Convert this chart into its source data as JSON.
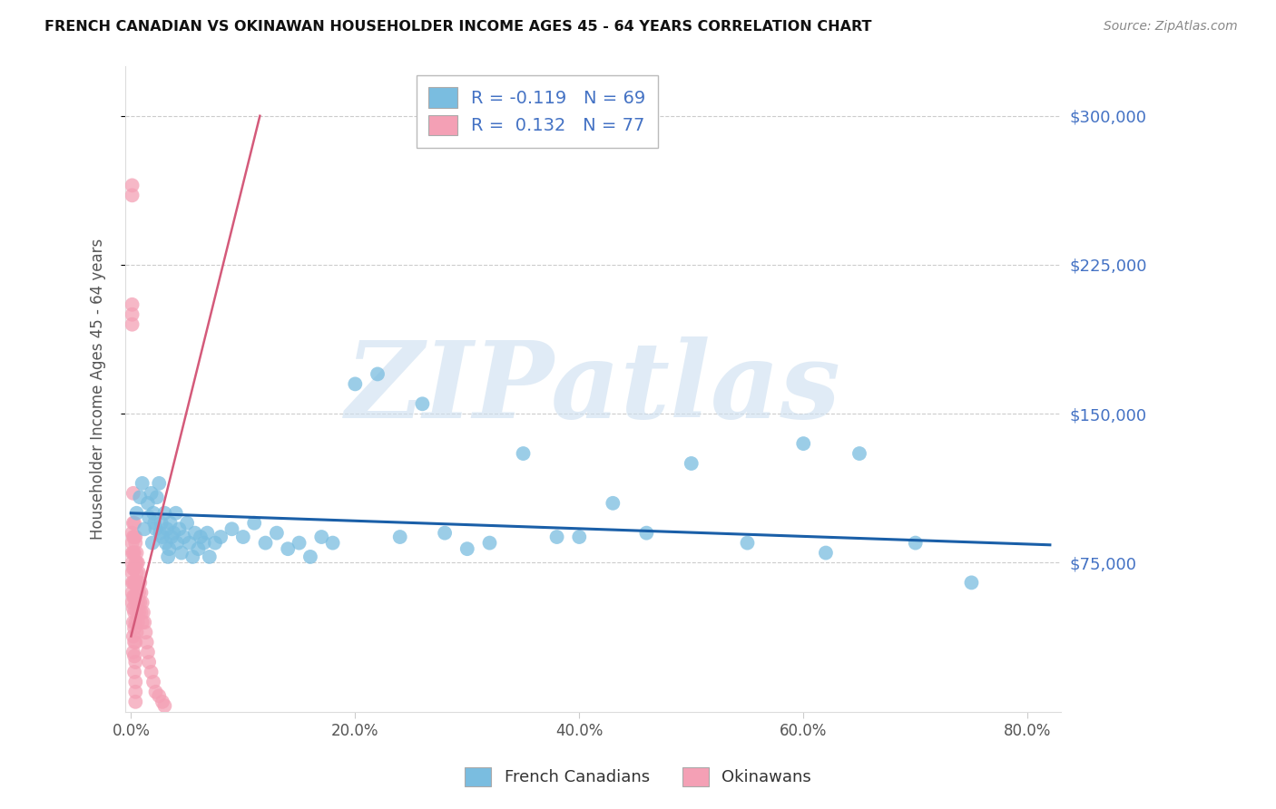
{
  "title": "FRENCH CANADIAN VS OKINAWAN HOUSEHOLDER INCOME AGES 45 - 64 YEARS CORRELATION CHART",
  "source": "Source: ZipAtlas.com",
  "ylabel": "Householder Income Ages 45 - 64 years",
  "ytick_labels": [
    "$75,000",
    "$150,000",
    "$225,000",
    "$300,000"
  ],
  "ytick_vals": [
    75000,
    150000,
    225000,
    300000
  ],
  "xtick_labels": [
    "0.0%",
    "20.0%",
    "40.0%",
    "60.0%",
    "80.0%"
  ],
  "xtick_vals": [
    0.0,
    0.2,
    0.4,
    0.6,
    0.8
  ],
  "ylim": [
    0,
    325000
  ],
  "xlim": [
    -0.005,
    0.83
  ],
  "blue_color": "#7abde0",
  "pink_color": "#f4a0b5",
  "trend_blue_color": "#1a5fa8",
  "trend_pink_color": "#d45a7a",
  "blue_label": "French Canadians",
  "pink_label": "Okinawans",
  "blue_R": -0.119,
  "blue_N": 69,
  "pink_R": 0.132,
  "pink_N": 77,
  "legend_text_color": "#4472c4",
  "watermark": "ZIPatlas",
  "watermark_color": "#ccdff0",
  "bg_color": "#ffffff",
  "grid_color": "#cccccc",
  "title_color": "#111111",
  "source_color": "#888888",
  "yticklabel_color": "#4472c4",
  "ylabel_color": "#555555",
  "blue_scatter_x": [
    0.005,
    0.008,
    0.01,
    0.012,
    0.015,
    0.016,
    0.018,
    0.019,
    0.02,
    0.021,
    0.022,
    0.023,
    0.025,
    0.026,
    0.027,
    0.028,
    0.03,
    0.031,
    0.032,
    0.033,
    0.034,
    0.035,
    0.036,
    0.038,
    0.04,
    0.041,
    0.043,
    0.045,
    0.047,
    0.05,
    0.052,
    0.055,
    0.057,
    0.06,
    0.062,
    0.065,
    0.068,
    0.07,
    0.075,
    0.08,
    0.09,
    0.1,
    0.11,
    0.12,
    0.13,
    0.14,
    0.15,
    0.16,
    0.17,
    0.18,
    0.2,
    0.22,
    0.24,
    0.26,
    0.28,
    0.3,
    0.32,
    0.35,
    0.38,
    0.4,
    0.43,
    0.46,
    0.5,
    0.55,
    0.6,
    0.62,
    0.65,
    0.7,
    0.75
  ],
  "blue_scatter_y": [
    100000,
    108000,
    115000,
    92000,
    105000,
    98000,
    110000,
    85000,
    100000,
    95000,
    92000,
    108000,
    115000,
    90000,
    95000,
    88000,
    100000,
    85000,
    92000,
    78000,
    82000,
    95000,
    88000,
    90000,
    100000,
    85000,
    92000,
    80000,
    88000,
    95000,
    85000,
    78000,
    90000,
    82000,
    88000,
    85000,
    90000,
    78000,
    85000,
    88000,
    92000,
    88000,
    95000,
    85000,
    90000,
    82000,
    85000,
    78000,
    88000,
    85000,
    165000,
    170000,
    88000,
    155000,
    90000,
    82000,
    85000,
    130000,
    88000,
    88000,
    105000,
    90000,
    125000,
    85000,
    135000,
    80000,
    130000,
    85000,
    65000
  ],
  "pink_scatter_x": [
    0.001,
    0.001,
    0.001,
    0.001,
    0.001,
    0.001,
    0.001,
    0.001,
    0.001,
    0.001,
    0.002,
    0.002,
    0.002,
    0.002,
    0.002,
    0.002,
    0.002,
    0.002,
    0.002,
    0.002,
    0.003,
    0.003,
    0.003,
    0.003,
    0.003,
    0.003,
    0.003,
    0.003,
    0.003,
    0.003,
    0.004,
    0.004,
    0.004,
    0.004,
    0.004,
    0.004,
    0.004,
    0.004,
    0.004,
    0.004,
    0.005,
    0.005,
    0.005,
    0.005,
    0.005,
    0.006,
    0.006,
    0.006,
    0.006,
    0.007,
    0.007,
    0.007,
    0.008,
    0.008,
    0.009,
    0.009,
    0.01,
    0.01,
    0.011,
    0.012,
    0.013,
    0.014,
    0.015,
    0.016,
    0.018,
    0.02,
    0.022,
    0.025,
    0.028,
    0.03,
    0.001,
    0.001,
    0.001,
    0.002,
    0.003,
    0.004,
    0.005
  ],
  "pink_scatter_y": [
    265000,
    260000,
    90000,
    85000,
    80000,
    75000,
    70000,
    65000,
    60000,
    55000,
    95000,
    88000,
    80000,
    72000,
    65000,
    58000,
    52000,
    45000,
    38000,
    30000,
    88000,
    80000,
    72000,
    65000,
    58000,
    50000,
    42000,
    35000,
    28000,
    20000,
    85000,
    75000,
    65000,
    55000,
    45000,
    35000,
    25000,
    15000,
    10000,
    5000,
    80000,
    70000,
    60000,
    50000,
    40000,
    75000,
    65000,
    55000,
    45000,
    70000,
    60000,
    50000,
    65000,
    55000,
    60000,
    50000,
    55000,
    45000,
    50000,
    45000,
    40000,
    35000,
    30000,
    25000,
    20000,
    15000,
    10000,
    8000,
    5000,
    3000,
    205000,
    200000,
    195000,
    110000,
    95000,
    88000,
    75000
  ],
  "blue_trend_x": [
    0.0,
    0.82
  ],
  "blue_trend_y": [
    100000,
    84000
  ],
  "pink_trend_x": [
    0.0,
    0.115
  ],
  "pink_trend_y": [
    38000,
    300000
  ]
}
